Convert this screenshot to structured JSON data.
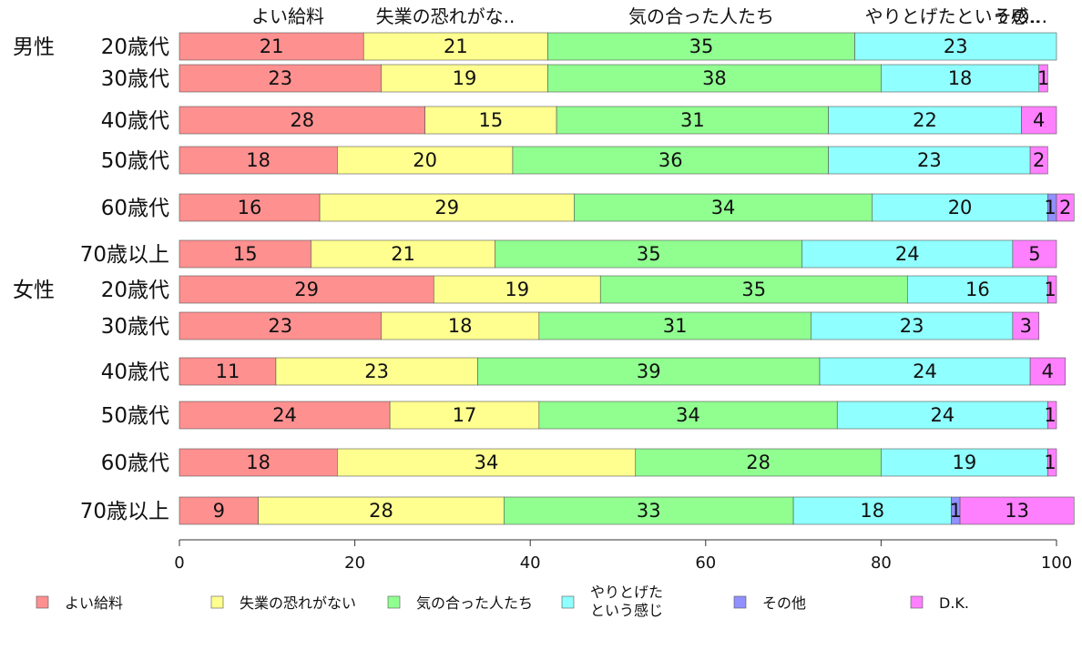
{
  "chart_data": {
    "type": "bar",
    "orientation": "horizontal",
    "stacked": true,
    "xlim": [
      0,
      100
    ],
    "x_ticks": [
      "0",
      "20",
      "40",
      "60",
      "80",
      "100"
    ],
    "top_labels": [
      "よい給料",
      "失業の恐れがな..",
      "気の合った人たち",
      "やりとげたという感..",
      "その..."
    ],
    "groups": [
      {
        "label": "男性",
        "first_row": 0
      },
      {
        "label": "女性",
        "first_row": 6
      }
    ],
    "categories": [
      "20歳代",
      "30歳代",
      "40歳代",
      "50歳代",
      "60歳代",
      "70歳以上",
      "20歳代",
      "30歳代",
      "40歳代",
      "50歳代",
      "60歳代",
      "70歳以上"
    ],
    "series": [
      {
        "name": "よい給料",
        "color": "#ff9090",
        "values": [
          21,
          23,
          28,
          18,
          16,
          15,
          29,
          23,
          11,
          24,
          18,
          9
        ]
      },
      {
        "name": "失業の恐れがない",
        "color": "#ffff90",
        "values": [
          21,
          19,
          15,
          20,
          29,
          21,
          19,
          18,
          23,
          17,
          34,
          28
        ]
      },
      {
        "name": "気の合った人たち",
        "color": "#90ff90",
        "values": [
          35,
          38,
          31,
          36,
          34,
          35,
          35,
          31,
          39,
          34,
          28,
          33
        ]
      },
      {
        "name": "やりとげたという感じ",
        "legend_lines": [
          "やりとげた",
          "という感じ"
        ],
        "color": "#90ffff",
        "values": [
          23,
          18,
          22,
          23,
          20,
          24,
          16,
          23,
          24,
          24,
          19,
          18
        ]
      },
      {
        "name": "その他",
        "color": "#9090ff",
        "values": [
          0,
          0,
          0,
          0,
          1,
          0,
          0,
          0,
          0,
          0,
          0,
          1
        ]
      },
      {
        "name": "D.K.",
        "color": "#ff80ff",
        "values": [
          0,
          1,
          4,
          2,
          2,
          5,
          1,
          3,
          4,
          1,
          1,
          13
        ]
      }
    ],
    "segment_labels": [
      [
        "21",
        "21",
        "35",
        "23",
        "",
        ""
      ],
      [
        "23",
        "19",
        "38",
        "18",
        "",
        "1"
      ],
      [
        "28",
        "15",
        "31",
        "22",
        "",
        "4"
      ],
      [
        "18",
        "20",
        "36",
        "23",
        "",
        "2"
      ],
      [
        "16",
        "29",
        "34",
        "20",
        "1",
        "2"
      ],
      [
        "15",
        "21",
        "35",
        "24",
        "",
        "5"
      ],
      [
        "29",
        "19",
        "35",
        "16",
        "",
        "1"
      ],
      [
        "23",
        "18",
        "31",
        "23",
        "",
        "3"
      ],
      [
        "11",
        "23",
        "39",
        "24",
        "",
        "4"
      ],
      [
        "24",
        "17",
        "34",
        "24",
        "",
        "1"
      ],
      [
        "18",
        "34",
        "28",
        "19",
        "",
        "1"
      ],
      [
        "9",
        "28",
        "33",
        "18",
        "1",
        "13"
      ]
    ],
    "legend_position": "bottom"
  }
}
